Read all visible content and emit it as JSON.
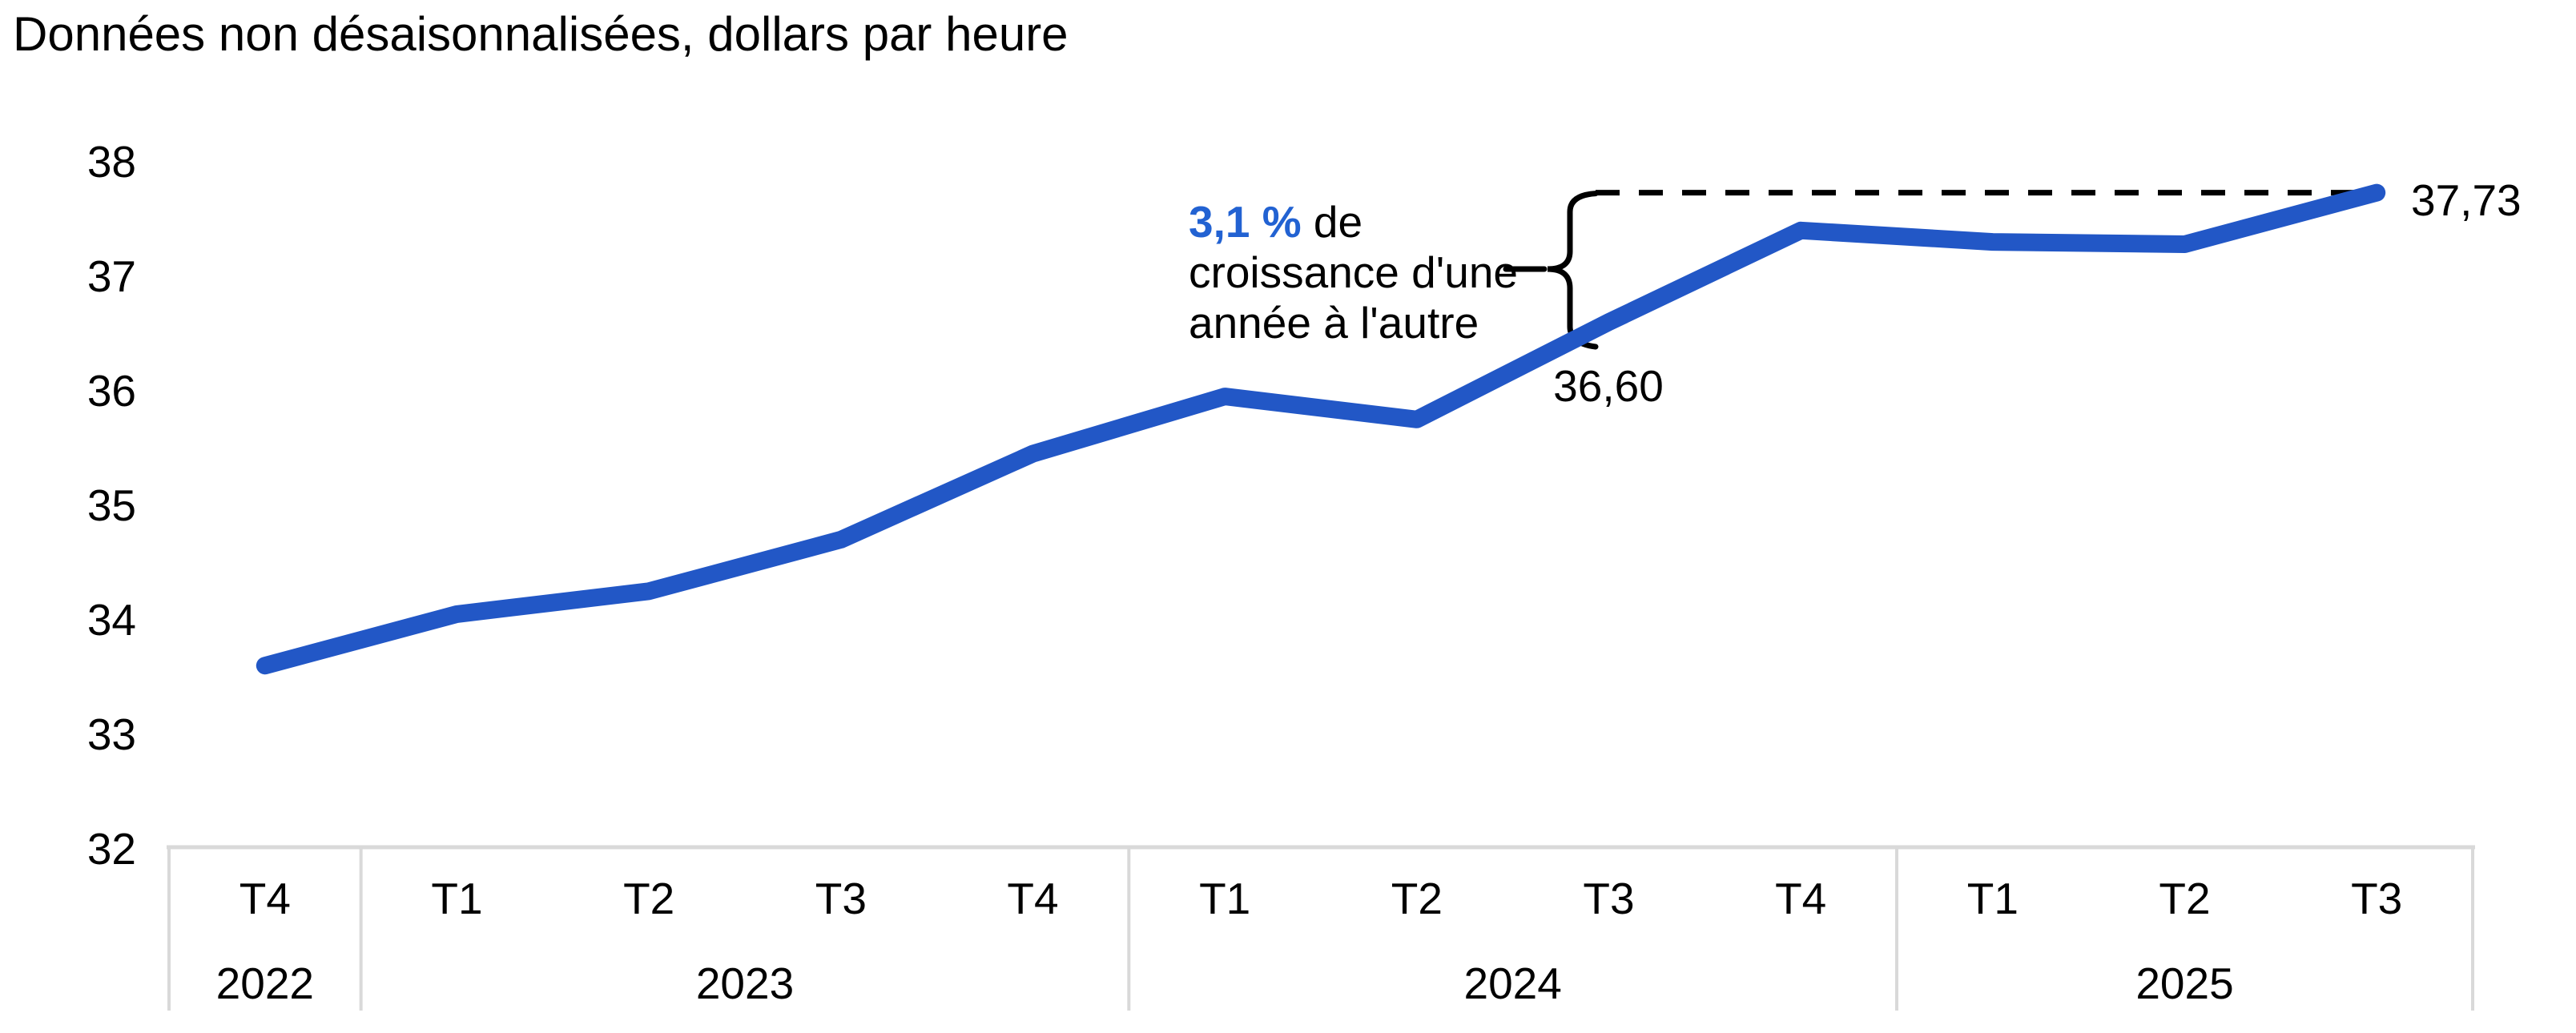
{
  "title": "Données non désaisonnalisées, dollars par heure",
  "annotation": {
    "highlight": "3,1 %",
    "line1_rest": " de",
    "line2": "croissance d'une",
    "line3": "année à l'autre"
  },
  "labels": {
    "first_value": "36,60",
    "last_value": "37,73"
  },
  "colors": {
    "line": "#2257C6",
    "accent_text": "#2262D2",
    "axis_border": "#D9D9D9",
    "text": "#000000",
    "background": "#FFFFFF",
    "guide": "#000000"
  },
  "chart_data": {
    "type": "line",
    "title": "Données non désaisonnalisées, dollars par heure",
    "ylabel": "dollars par heure",
    "ylim": [
      32,
      38
    ],
    "ytick_step": 1,
    "grid": false,
    "legend": "none",
    "quarters": [
      "T4",
      "T1",
      "T2",
      "T3",
      "T4",
      "T1",
      "T2",
      "T3",
      "T4",
      "T1",
      "T2",
      "T3"
    ],
    "year_groups": [
      {
        "label": "2022",
        "span": 1
      },
      {
        "label": "2023",
        "span": 4
      },
      {
        "label": "2024",
        "span": 4
      },
      {
        "label": "2025",
        "span": 3
      }
    ],
    "values": [
      33.6,
      34.05,
      34.25,
      34.7,
      35.45,
      35.95,
      35.75,
      36.6,
      37.4,
      37.3,
      37.28,
      37.73
    ],
    "annotations": {
      "growth_rate": "3,1 %",
      "growth_text": "de croissance d'une année à l'autre",
      "labeled_points": [
        {
          "x_index": 7,
          "quarter": "T3",
          "year": "2024",
          "label": "36,60"
        },
        {
          "x_index": 11,
          "quarter": "T3",
          "year": "2025",
          "label": "37,73"
        }
      ]
    }
  }
}
